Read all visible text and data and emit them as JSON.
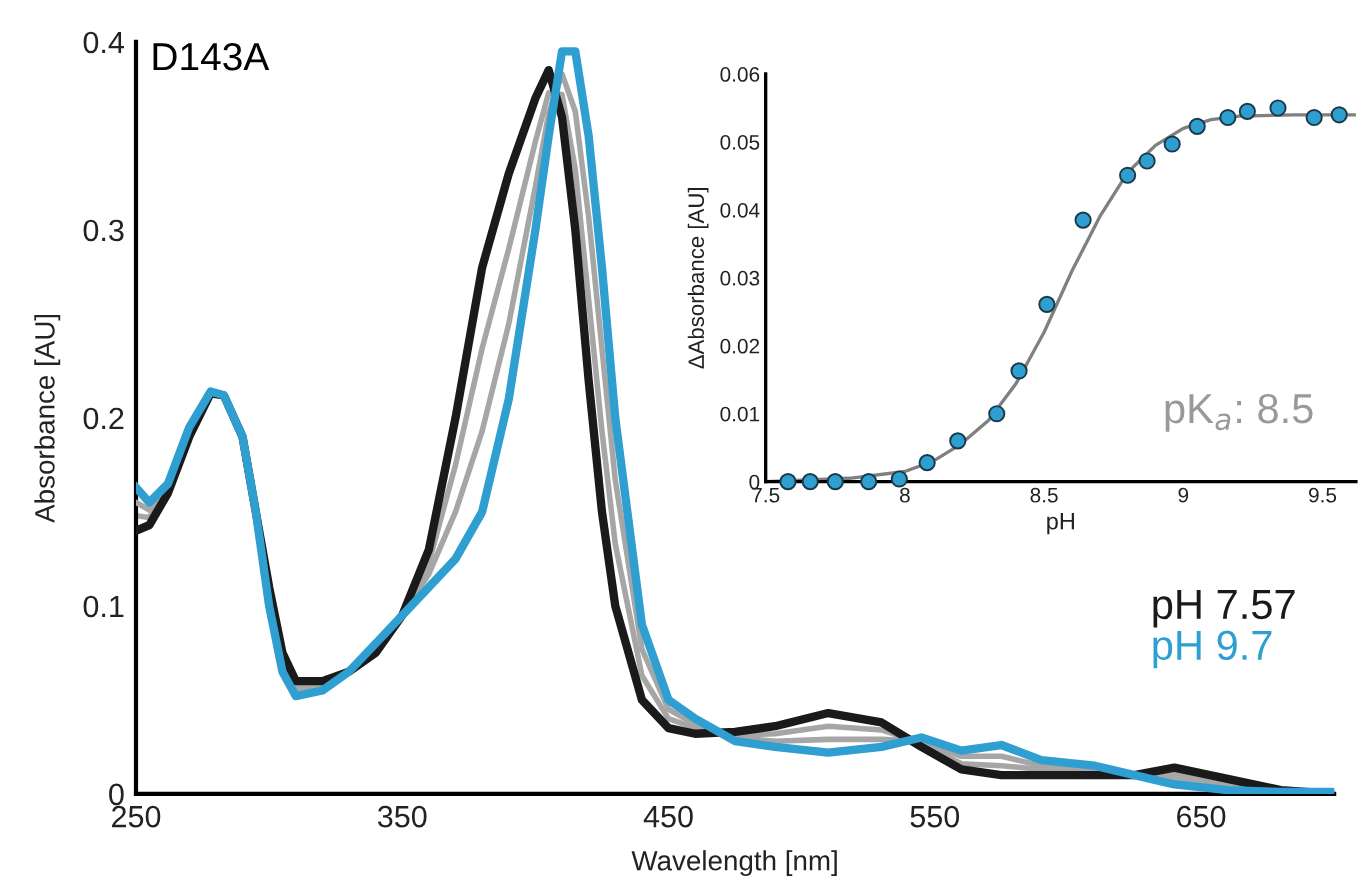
{
  "chart_data": [
    {
      "type": "line",
      "xlabel": "Wavelength [nm]",
      "ylabel": "Absorbance [AU]",
      "annotations": [
        "D143A"
      ],
      "x": [
        250,
        255,
        262,
        270,
        278,
        283,
        290,
        295,
        300,
        305,
        310,
        320,
        330,
        340,
        350,
        360,
        370,
        380,
        390,
        400,
        405,
        410,
        415,
        420,
        425,
        430,
        440,
        450,
        460,
        475,
        490,
        510,
        530,
        545,
        560,
        575,
        590,
        610,
        625,
        640,
        660,
        680,
        700
      ],
      "series": [
        {
          "color": "#a6a6a6",
          "values": [
            0.148,
            0.147,
            0.162,
            0.192,
            0.213,
            0.212,
            0.19,
            0.15,
            0.107,
            0.072,
            0.057,
            0.058,
            0.065,
            0.077,
            0.095,
            0.123,
            0.175,
            0.237,
            0.29,
            0.347,
            0.373,
            0.372,
            0.332,
            0.263,
            0.193,
            0.133,
            0.063,
            0.04,
            0.035,
            0.031,
            0.032,
            0.036,
            0.034,
            0.027,
            0.016,
            0.015,
            0.013,
            0.012,
            0.01,
            0.011,
            0.006,
            0.002,
            0.0
          ]
        },
        {
          "color": "#a6a6a6",
          "values": [
            0.155,
            0.151,
            0.163,
            0.193,
            0.213,
            0.212,
            0.19,
            0.15,
            0.103,
            0.068,
            0.055,
            0.057,
            0.065,
            0.078,
            0.095,
            0.117,
            0.15,
            0.193,
            0.25,
            0.323,
            0.362,
            0.383,
            0.363,
            0.307,
            0.237,
            0.167,
            0.077,
            0.045,
            0.037,
            0.03,
            0.028,
            0.029,
            0.029,
            0.028,
            0.02,
            0.02,
            0.015,
            0.013,
            0.01,
            0.008,
            0.004,
            0.001,
            0.001
          ]
        },
        {
          "name": "pH 7.57",
          "color": "#1a1a1a",
          "values": [
            0.14,
            0.143,
            0.16,
            0.19,
            0.213,
            0.212,
            0.19,
            0.15,
            0.11,
            0.075,
            0.06,
            0.06,
            0.065,
            0.075,
            0.095,
            0.13,
            0.2,
            0.28,
            0.33,
            0.37,
            0.385,
            0.36,
            0.3,
            0.22,
            0.15,
            0.1,
            0.05,
            0.035,
            0.032,
            0.033,
            0.036,
            0.043,
            0.038,
            0.025,
            0.013,
            0.01,
            0.01,
            0.01,
            0.01,
            0.014,
            0.008,
            0.002,
            0.0
          ]
        },
        {
          "name": "pH 9.7",
          "color": "#2e9fd0",
          "values": [
            0.163,
            0.155,
            0.165,
            0.195,
            0.214,
            0.212,
            0.19,
            0.15,
            0.1,
            0.065,
            0.052,
            0.055,
            0.065,
            0.08,
            0.095,
            0.11,
            0.125,
            0.15,
            0.21,
            0.3,
            0.35,
            0.395,
            0.395,
            0.35,
            0.28,
            0.2,
            0.09,
            0.05,
            0.04,
            0.028,
            0.025,
            0.022,
            0.025,
            0.03,
            0.023,
            0.026,
            0.018,
            0.015,
            0.01,
            0.005,
            0.002,
            0.001,
            0.001
          ]
        }
      ],
      "xlim": [
        250,
        700
      ],
      "ylim": [
        0,
        0.4
      ],
      "xticks": [
        250,
        350,
        450,
        550,
        650
      ],
      "yticks": [
        0,
        0.1,
        0.2,
        0.3,
        0.4
      ],
      "grid": false,
      "legend": "right",
      "line_style": "solid",
      "marker": "none"
    },
    {
      "type": "scatter",
      "xlabel": "pH",
      "ylabel": "ΔAbsorbance [AU]",
      "annotations": [
        "pK$_{a}$: 8.5"
      ],
      "series": [
        {
          "type": "line",
          "color": "#808080",
          "x": [
            7.5,
            7.8,
            8.0,
            8.1,
            8.2,
            8.3,
            8.4,
            8.5,
            8.6,
            8.7,
            8.8,
            8.9,
            9.0,
            9.1,
            9.2,
            9.4,
            9.62
          ],
          "values": [
            0,
            0.0005,
            0.0015,
            0.003,
            0.0055,
            0.009,
            0.0145,
            0.022,
            0.031,
            0.039,
            0.0455,
            0.0495,
            0.052,
            0.0533,
            0.0538,
            0.054,
            0.054
          ]
        },
        {
          "type": "scatter",
          "color": "#2e9fd0",
          "marker": "circle",
          "x": [
            7.58,
            7.66,
            7.75,
            7.87,
            7.98,
            8.08,
            8.19,
            8.33,
            8.41,
            8.51,
            8.64,
            8.8,
            8.87,
            8.96,
            9.05,
            9.16,
            9.23,
            9.34,
            9.47,
            9.56
          ],
          "values": [
            0,
            0,
            0,
            0,
            0.0004,
            0.0028,
            0.006,
            0.01,
            0.0163,
            0.0261,
            0.0385,
            0.0451,
            0.0472,
            0.0497,
            0.0523,
            0.0536,
            0.0545,
            0.055,
            0.0536,
            0.054
          ]
        }
      ],
      "xlim": [
        7.5,
        9.62
      ],
      "ylim": [
        0,
        0.06
      ],
      "xticks": [
        7.5,
        8,
        8.5,
        9,
        9.5
      ],
      "yticks": [
        0,
        0.01,
        0.02,
        0.03,
        0.04,
        0.05,
        0.06
      ],
      "grid": false,
      "legend": false
    }
  ]
}
